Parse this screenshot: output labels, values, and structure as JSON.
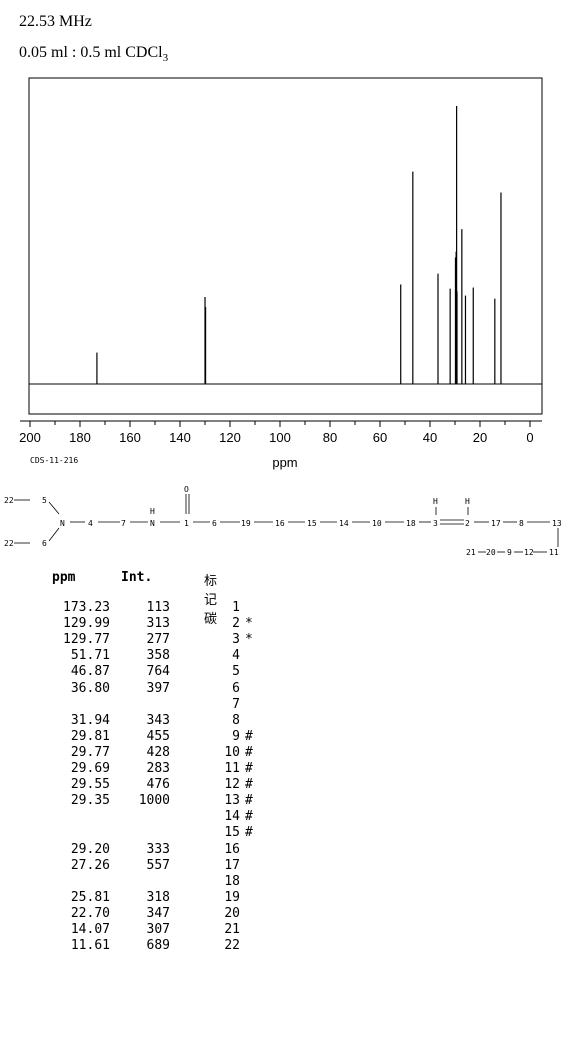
{
  "header": {
    "frequency": "22.53 MHz",
    "sample_prefix": "0.05 ml : 0.5 ml CDCl",
    "sample_subscript": "3"
  },
  "code": "CDS-11-216",
  "chart_data": {
    "type": "bar",
    "xlabel": "ppm",
    "xlim": [
      200,
      0
    ],
    "x_ticks": [
      200,
      180,
      160,
      140,
      120,
      100,
      80,
      60,
      40,
      20,
      0
    ],
    "ylim": [
      0,
      1000
    ],
    "peaks": [
      {
        "ppm": 173.23,
        "intensity": 113
      },
      {
        "ppm": 129.99,
        "intensity": 313
      },
      {
        "ppm": 129.77,
        "intensity": 277
      },
      {
        "ppm": 51.71,
        "intensity": 358
      },
      {
        "ppm": 46.87,
        "intensity": 764
      },
      {
        "ppm": 36.8,
        "intensity": 397
      },
      {
        "ppm": 31.94,
        "intensity": 343
      },
      {
        "ppm": 29.81,
        "intensity": 455
      },
      {
        "ppm": 29.77,
        "intensity": 428
      },
      {
        "ppm": 29.69,
        "intensity": 283
      },
      {
        "ppm": 29.55,
        "intensity": 476
      },
      {
        "ppm": 29.35,
        "intensity": 1000
      },
      {
        "ppm": 29.2,
        "intensity": 333
      },
      {
        "ppm": 27.26,
        "intensity": 557
      },
      {
        "ppm": 25.81,
        "intensity": 318
      },
      {
        "ppm": 22.7,
        "intensity": 347
      },
      {
        "ppm": 14.07,
        "intensity": 307
      },
      {
        "ppm": 11.61,
        "intensity": 689
      }
    ]
  },
  "table": {
    "headers": {
      "ppm": "ppm",
      "int": "Int.",
      "carbon": "标记碳"
    },
    "rows": [
      {
        "ppm": "173.23",
        "int": "113",
        "carbon": "1",
        "mark": ""
      },
      {
        "ppm": "129.99",
        "int": "313",
        "carbon": "2",
        "mark": "*"
      },
      {
        "ppm": "129.77",
        "int": "277",
        "carbon": "3",
        "mark": "*"
      },
      {
        "ppm": "51.71",
        "int": "358",
        "carbon": "4",
        "mark": ""
      },
      {
        "ppm": "46.87",
        "int": "764",
        "carbon": "5",
        "mark": ""
      },
      {
        "ppm": "36.80",
        "int": "397",
        "carbon": "6",
        "mark": ""
      },
      {
        "ppm": "",
        "int": "",
        "carbon": "7",
        "mark": ""
      },
      {
        "ppm": "31.94",
        "int": "343",
        "carbon": "8",
        "mark": ""
      },
      {
        "ppm": "29.81",
        "int": "455",
        "carbon": "9",
        "mark": "#"
      },
      {
        "ppm": "29.77",
        "int": "428",
        "carbon": "10",
        "mark": "#"
      },
      {
        "ppm": "29.69",
        "int": "283",
        "carbon": "11",
        "mark": "#"
      },
      {
        "ppm": "29.55",
        "int": "476",
        "carbon": "12",
        "mark": "#"
      },
      {
        "ppm": "29.35",
        "int": "1000",
        "carbon": "13",
        "mark": "#"
      },
      {
        "ppm": "",
        "int": "",
        "carbon": "14",
        "mark": "#"
      },
      {
        "ppm": "",
        "int": "",
        "carbon": "15",
        "mark": "#"
      },
      {
        "ppm": "29.20",
        "int": "333",
        "carbon": "16",
        "mark": ""
      },
      {
        "ppm": "27.26",
        "int": "557",
        "carbon": "17",
        "mark": ""
      },
      {
        "ppm": "",
        "int": "",
        "carbon": "18",
        "mark": ""
      },
      {
        "ppm": "25.81",
        "int": "318",
        "carbon": "19",
        "mark": ""
      },
      {
        "ppm": "22.70",
        "int": "347",
        "carbon": "20",
        "mark": ""
      },
      {
        "ppm": "14.07",
        "int": "307",
        "carbon": "21",
        "mark": ""
      },
      {
        "ppm": "11.61",
        "int": "689",
        "carbon": "22",
        "mark": ""
      }
    ]
  },
  "structure": {
    "labels": [
      "22",
      "5",
      "N",
      "4",
      "7",
      "H",
      "N",
      "O",
      "1",
      "6",
      "19",
      "16",
      "15",
      "14",
      "10",
      "18",
      "H",
      "3",
      "H",
      "2",
      "17",
      "8",
      "13",
      "22",
      "6",
      "21",
      "20",
      "9",
      "12",
      "11"
    ]
  }
}
